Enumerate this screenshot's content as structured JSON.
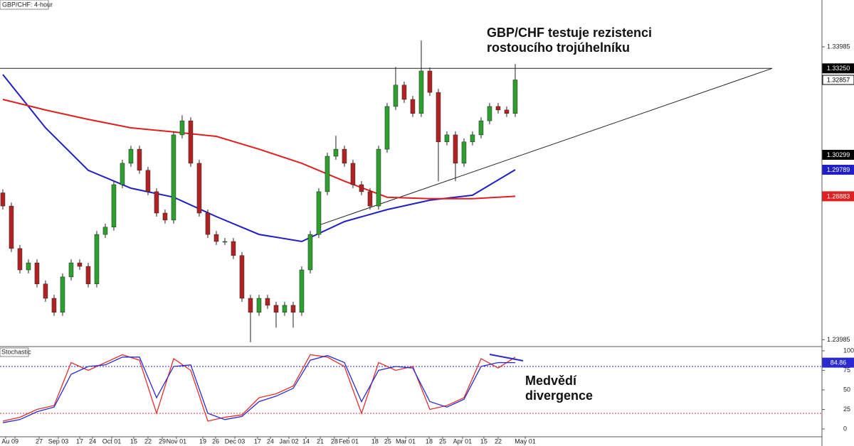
{
  "chart_data": [
    {
      "type": "candlestick",
      "title": "GBP/CHF: 4-hour",
      "annotation": [
        "GBP/CHF testuje rezistenci",
        "rostoucího trojúhelníku"
      ],
      "up_color": "#2ca02c",
      "down_color": "#b22222",
      "open": [
        1.29,
        1.2855,
        1.271,
        1.2637,
        1.2661,
        1.2589,
        1.254,
        1.2492,
        1.2613,
        1.2661,
        1.2649,
        1.2589,
        1.2758,
        1.2783,
        1.2928,
        1.3001,
        1.3049,
        1.2977,
        1.2904,
        1.2831,
        1.2807,
        1.3098,
        1.3146,
        1.3001,
        1.2831,
        1.2758,
        1.2734,
        1.2734,
        1.2686,
        1.254,
        1.2492,
        1.254,
        1.2516,
        1.2492,
        1.2516,
        1.2492,
        1.2637,
        1.2758,
        1.2904,
        1.3025,
        1.3049,
        1.3001,
        1.2928,
        1.2904,
        1.2855,
        1.3049,
        1.3195,
        1.3268,
        1.3219,
        1.3171,
        1.3316,
        1.3243,
        1.3074,
        1.3098,
        1.3001,
        1.3074,
        1.3098,
        1.3146,
        1.3195,
        1.3183,
        1.3171
      ],
      "high": [
        1.2912,
        1.2867,
        1.2722,
        1.2673,
        1.2673,
        1.2601,
        1.2552,
        1.2625,
        1.2673,
        1.2673,
        1.2661,
        1.277,
        1.2795,
        1.294,
        1.3013,
        1.3061,
        1.3061,
        1.2989,
        1.2916,
        1.2843,
        1.311,
        1.3165,
        1.3158,
        1.3013,
        1.2843,
        1.277,
        1.2746,
        1.2746,
        1.2698,
        1.2552,
        1.2552,
        1.2552,
        1.2528,
        1.2528,
        1.2528,
        1.2649,
        1.277,
        1.2916,
        1.3037,
        1.3095,
        1.3061,
        1.3013,
        1.294,
        1.2916,
        1.3061,
        1.3207,
        1.333,
        1.328,
        1.3231,
        1.342,
        1.3328,
        1.3255,
        1.311,
        1.311,
        1.3086,
        1.311,
        1.3158,
        1.3207,
        1.3207,
        1.3195,
        1.334
      ],
      "low": [
        1.2843,
        1.2698,
        1.2625,
        1.2625,
        1.2577,
        1.2528,
        1.248,
        1.248,
        1.2601,
        1.2637,
        1.2577,
        1.2577,
        1.2746,
        1.2771,
        1.2916,
        1.2989,
        1.2965,
        1.2892,
        1.2819,
        1.2795,
        1.2795,
        1.3086,
        1.2989,
        1.2819,
        1.2746,
        1.2722,
        1.2722,
        1.2674,
        1.2528,
        1.239,
        1.248,
        1.2504,
        1.244,
        1.248,
        1.244,
        1.248,
        1.2625,
        1.2746,
        1.2892,
        1.3013,
        1.2989,
        1.2916,
        1.2892,
        1.2843,
        1.2843,
        1.3037,
        1.3183,
        1.3207,
        1.3159,
        1.3159,
        1.3231,
        1.294,
        1.3062,
        1.294,
        1.2989,
        1.3062,
        1.3086,
        1.3134,
        1.3171,
        1.3159,
        1.3159
      ],
      "close": [
        1.2855,
        1.271,
        1.2637,
        1.2661,
        1.2589,
        1.254,
        1.2492,
        1.2613,
        1.2661,
        1.2649,
        1.2589,
        1.2758,
        1.2783,
        1.2928,
        1.3001,
        1.3049,
        1.2977,
        1.2904,
        1.2831,
        1.2807,
        1.3098,
        1.3146,
        1.3001,
        1.2831,
        1.2758,
        1.2734,
        1.2734,
        1.2686,
        1.254,
        1.2492,
        1.254,
        1.2516,
        1.2492,
        1.2516,
        1.2492,
        1.2637,
        1.2758,
        1.2904,
        1.3025,
        1.3049,
        1.3001,
        1.2928,
        1.2904,
        1.2855,
        1.3049,
        1.3195,
        1.3268,
        1.3219,
        1.3171,
        1.3316,
        1.3243,
        1.3074,
        1.3098,
        1.3001,
        1.3074,
        1.3098,
        1.3146,
        1.3195,
        1.3183,
        1.3171,
        1.32857
      ],
      "series": [
        {
          "color": "#1f1fc8",
          "x": [
            0,
            5,
            10,
            15,
            20,
            25,
            30,
            35,
            40,
            45,
            50,
            55,
            60
          ],
          "values": [
            1.3304,
            1.3122,
            1.2977,
            1.2916,
            1.2885,
            1.2819,
            1.2758,
            1.2734,
            1.2802,
            1.2843,
            1.2875,
            1.2892,
            1.29789
          ]
        },
        {
          "color": "#e02020",
          "x": [
            0,
            5,
            10,
            15,
            20,
            25,
            30,
            35,
            40,
            45,
            50,
            55,
            60
          ],
          "values": [
            1.3219,
            1.3183,
            1.3151,
            1.3122,
            1.3108,
            1.3093,
            1.3049,
            1.3001,
            1.294,
            1.2885,
            1.288,
            1.288,
            1.28883
          ]
        }
      ],
      "trendlines": [
        {
          "x": [
            -0.33,
            90.08
          ],
          "values": [
            1.3325,
            1.3325
          ]
        },
        {
          "x": [
            36.75,
            90.08
          ],
          "values": [
            1.2787,
            1.3325
          ]
        }
      ],
      "price_tags": [
        {
          "value": 1.3325,
          "label": "1.33250",
          "color": "#000000"
        },
        {
          "value": 1.32857,
          "label": "1.32857",
          "color": "#ffffff"
        },
        {
          "value": 1.30299,
          "label": "1.30299",
          "color": "#000000"
        }
      ],
      "xlim": [
        -0.33,
        95.92
      ],
      "ylim": [
        1.23776,
        1.35585
      ],
      "yticks": [
        1.33985,
        1.23985
      ]
    },
    {
      "type": "line",
      "title": "Stochastic",
      "annotation": [
        "Medvědí",
        "divergence"
      ],
      "x": [
        0,
        2,
        4,
        6,
        8,
        10,
        12,
        14,
        16,
        18,
        20,
        22,
        24,
        26,
        28,
        30,
        32,
        34,
        36,
        38,
        40,
        42,
        44,
        46,
        48,
        50,
        52,
        54,
        56,
        58,
        60
      ],
      "series": [
        {
          "color": "#e03030",
          "values": [
            10,
            15,
            25,
            30,
            85,
            75,
            85,
            95,
            88,
            20,
            90,
            75,
            10,
            15,
            18,
            40,
            45,
            55,
            95,
            92,
            80,
            20,
            85,
            75,
            80,
            25,
            30,
            40,
            90,
            78,
            92
          ]
        },
        {
          "color": "#2a2ad0",
          "values": [
            8,
            12,
            22,
            28,
            70,
            80,
            82,
            92,
            92,
            40,
            80,
            82,
            20,
            12,
            16,
            35,
            42,
            52,
            88,
            94,
            85,
            35,
            75,
            80,
            78,
            35,
            28,
            38,
            80,
            85,
            84.86
          ]
        }
      ],
      "levels": [
        {
          "value": 80,
          "color": "#2a2ad0"
        },
        {
          "value": 20,
          "color": "#e03030"
        }
      ],
      "xlim": [
        -0.33,
        95.92
      ],
      "ylim": [
        -10,
        104.5
      ],
      "yticks": [
        0,
        25,
        50,
        75,
        100
      ],
      "xticks": [
        {
          "value": 0.33,
          "label": "Au"
        },
        {
          "value": 1.42,
          "label": "09"
        },
        {
          "value": 4.25,
          "label": "27"
        },
        {
          "value": 6.5,
          "label": "Sep 03"
        },
        {
          "value": 9,
          "label": "17"
        },
        {
          "value": 10.5,
          "label": "24"
        },
        {
          "value": 12.75,
          "label": "Oct 01"
        },
        {
          "value": 15.33,
          "label": "15"
        },
        {
          "value": 17,
          "label": "22"
        },
        {
          "value": 18.67,
          "label": "29"
        },
        {
          "value": 20.33,
          "label": "Nov 01"
        },
        {
          "value": 23.42,
          "label": "19"
        },
        {
          "value": 24.92,
          "label": "26"
        },
        {
          "value": 27.17,
          "label": "Dec 03"
        },
        {
          "value": 29.83,
          "label": "17"
        },
        {
          "value": 31.33,
          "label": "24"
        },
        {
          "value": 33.5,
          "label": "Jan 02"
        },
        {
          "value": 35.5,
          "label": "14"
        },
        {
          "value": 37.17,
          "label": "21"
        },
        {
          "value": 38.83,
          "label": "28"
        },
        {
          "value": 40.5,
          "label": "Feb 01"
        },
        {
          "value": 43.58,
          "label": "18"
        },
        {
          "value": 45.08,
          "label": "25"
        },
        {
          "value": 47.17,
          "label": "Mar 01"
        },
        {
          "value": 49.92,
          "label": "18"
        },
        {
          "value": 51.5,
          "label": "25"
        },
        {
          "value": 53.83,
          "label": "Apr 01"
        },
        {
          "value": 56.33,
          "label": "15"
        },
        {
          "value": 58,
          "label": "22"
        },
        {
          "value": 61.17,
          "label": "May 01"
        }
      ]
    }
  ]
}
